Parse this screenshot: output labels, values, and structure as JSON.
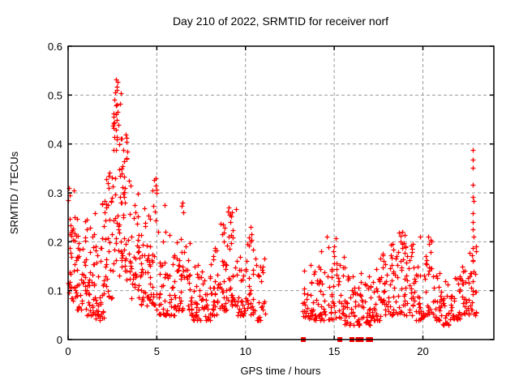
{
  "page": {
    "background": "#ffffff"
  },
  "chart_data": {
    "type": "scatter",
    "title": "Day 210 of 2022, SRMTID for receiver norf",
    "xlabel": "GPS time / hours",
    "ylabel": "SRMTID / TECUs",
    "xlim": [
      0,
      24
    ],
    "ylim": [
      0,
      0.6
    ],
    "xticks": [
      0,
      5,
      10,
      15,
      20
    ],
    "xtick_labels": [
      "0",
      "5",
      "10",
      "15",
      "20"
    ],
    "yticks": [
      0,
      0.1,
      0.2,
      0.3,
      0.4,
      0.5,
      0.6
    ],
    "ytick_labels": [
      "0",
      "0.1",
      "0.2",
      "0.3",
      "0.4",
      "0.5",
      "0.6"
    ],
    "grid": "dashed gray lines at major ticks, mirrored inward ticks on all four borders",
    "legend": "none",
    "marker": "plus",
    "colors": {
      "points": "#ff0000",
      "grid": "#999999",
      "border": "#000000",
      "text": "#000000"
    },
    "series": [
      {
        "name": "SRMTID",
        "shape_note": "dense scatter 0-11h peaking 0.53 near 2.7h; no data 11.1-13.2h; resumes 13.2-23h mostly 0.03-0.2 with spike to 0.39 near 22.8h",
        "density_bins": {
          "columns": [
            "x_start",
            "x_end",
            "y_min",
            "y_max",
            "count",
            "low_bias_exponent"
          ],
          "rows": [
            [
              0.0,
              0.5,
              0.08,
              0.31,
              40,
              1.6
            ],
            [
              0.5,
              1.0,
              0.06,
              0.26,
              35,
              1.8
            ],
            [
              1.0,
              1.5,
              0.05,
              0.25,
              35,
              1.8
            ],
            [
              1.5,
              2.0,
              0.04,
              0.28,
              35,
              1.8
            ],
            [
              2.0,
              2.5,
              0.08,
              0.35,
              35,
              1.5
            ],
            [
              2.5,
              3.0,
              0.12,
              0.53,
              45,
              1.2
            ],
            [
              3.0,
              3.5,
              0.12,
              0.42,
              38,
              1.4
            ],
            [
              3.5,
              4.0,
              0.08,
              0.33,
              32,
              1.6
            ],
            [
              4.0,
              4.5,
              0.07,
              0.3,
              30,
              1.8
            ],
            [
              4.5,
              5.0,
              0.07,
              0.33,
              32,
              1.8
            ],
            [
              5.0,
              5.5,
              0.05,
              0.28,
              28,
              2.0
            ],
            [
              5.5,
              6.0,
              0.05,
              0.22,
              26,
              2.0
            ],
            [
              6.0,
              6.5,
              0.06,
              0.28,
              30,
              2.0
            ],
            [
              6.5,
              7.0,
              0.05,
              0.2,
              26,
              2.0
            ],
            [
              7.0,
              7.5,
              0.04,
              0.16,
              26,
              1.8
            ],
            [
              7.5,
              8.0,
              0.04,
              0.15,
              26,
              1.8
            ],
            [
              8.0,
              8.5,
              0.05,
              0.2,
              30,
              1.8
            ],
            [
              8.5,
              9.0,
              0.06,
              0.24,
              32,
              1.7
            ],
            [
              9.0,
              9.5,
              0.07,
              0.27,
              32,
              1.6
            ],
            [
              9.5,
              10.0,
              0.05,
              0.18,
              26,
              1.8
            ],
            [
              10.0,
              10.5,
              0.05,
              0.23,
              28,
              1.8
            ],
            [
              10.5,
              11.1,
              0.04,
              0.17,
              26,
              1.8
            ],
            [
              13.2,
              13.6,
              0.04,
              0.15,
              18,
              1.7
            ],
            [
              13.6,
              14.1,
              0.04,
              0.17,
              26,
              1.8
            ],
            [
              14.1,
              14.6,
              0.04,
              0.19,
              26,
              1.8
            ],
            [
              14.6,
              15.1,
              0.04,
              0.21,
              26,
              1.8
            ],
            [
              15.1,
              15.6,
              0.04,
              0.17,
              26,
              1.8
            ],
            [
              15.6,
              16.1,
              0.03,
              0.13,
              24,
              1.7
            ],
            [
              16.1,
              16.6,
              0.03,
              0.14,
              26,
              1.7
            ],
            [
              16.6,
              17.1,
              0.03,
              0.13,
              26,
              1.7
            ],
            [
              17.1,
              17.6,
              0.04,
              0.15,
              26,
              1.7
            ],
            [
              17.6,
              18.1,
              0.05,
              0.19,
              28,
              1.7
            ],
            [
              18.1,
              18.6,
              0.05,
              0.2,
              30,
              1.7
            ],
            [
              18.6,
              19.1,
              0.05,
              0.22,
              30,
              1.7
            ],
            [
              19.1,
              19.6,
              0.05,
              0.2,
              28,
              1.7
            ],
            [
              19.6,
              20.1,
              0.04,
              0.21,
              26,
              1.8
            ],
            [
              20.1,
              20.6,
              0.05,
              0.21,
              26,
              1.8
            ],
            [
              20.6,
              21.1,
              0.04,
              0.14,
              26,
              1.8
            ],
            [
              21.1,
              21.6,
              0.03,
              0.12,
              24,
              1.8
            ],
            [
              21.6,
              22.1,
              0.04,
              0.13,
              26,
              1.7
            ],
            [
              22.1,
              22.6,
              0.05,
              0.15,
              26,
              1.6
            ],
            [
              22.6,
              23.0,
              0.05,
              0.2,
              22,
              1.6
            ]
          ]
        },
        "feature_points": [
          [
            0.05,
            0.31
          ],
          [
            0.1,
            0.295
          ],
          [
            2.3,
            0.31
          ],
          [
            2.55,
            0.455
          ],
          [
            2.6,
            0.49
          ],
          [
            2.65,
            0.505
          ],
          [
            2.68,
            0.532
          ],
          [
            2.72,
            0.51
          ],
          [
            2.75,
            0.48
          ],
          [
            2.78,
            0.465
          ],
          [
            2.82,
            0.44
          ],
          [
            2.7,
            0.43
          ],
          [
            2.6,
            0.415
          ],
          [
            2.9,
            0.4
          ],
          [
            3.25,
            0.42
          ],
          [
            3.3,
            0.405
          ],
          [
            3.35,
            0.385
          ],
          [
            3.3,
            0.37
          ],
          [
            4.92,
            0.33
          ],
          [
            4.95,
            0.315
          ],
          [
            5.0,
            0.3
          ],
          [
            6.45,
            0.28
          ],
          [
            6.5,
            0.26
          ],
          [
            9.05,
            0.27
          ],
          [
            9.1,
            0.255
          ],
          [
            9.15,
            0.24
          ],
          [
            10.3,
            0.23
          ],
          [
            10.35,
            0.215
          ],
          [
            14.6,
            0.21
          ],
          [
            15.0,
            0.19
          ],
          [
            18.85,
            0.22
          ],
          [
            19.0,
            0.19
          ],
          [
            20.3,
            0.21
          ],
          [
            20.35,
            0.195
          ],
          [
            22.8,
            0.1
          ],
          [
            22.82,
            0.12
          ],
          [
            22.84,
            0.14
          ],
          [
            22.8,
            0.16
          ],
          [
            22.82,
            0.187
          ],
          [
            22.86,
            0.21
          ],
          [
            22.8,
            0.225
          ],
          [
            22.83,
            0.24
          ],
          [
            22.8,
            0.259
          ],
          [
            22.84,
            0.283
          ],
          [
            22.79,
            0.292
          ],
          [
            22.82,
            0.317
          ],
          [
            22.81,
            0.351
          ],
          [
            22.83,
            0.368
          ],
          [
            22.82,
            0.388
          ]
        ],
        "zero_value_times": [
          13.26,
          15.32,
          16.0,
          16.34,
          16.43,
          16.52,
          16.93,
          17.05
        ]
      }
    ]
  }
}
